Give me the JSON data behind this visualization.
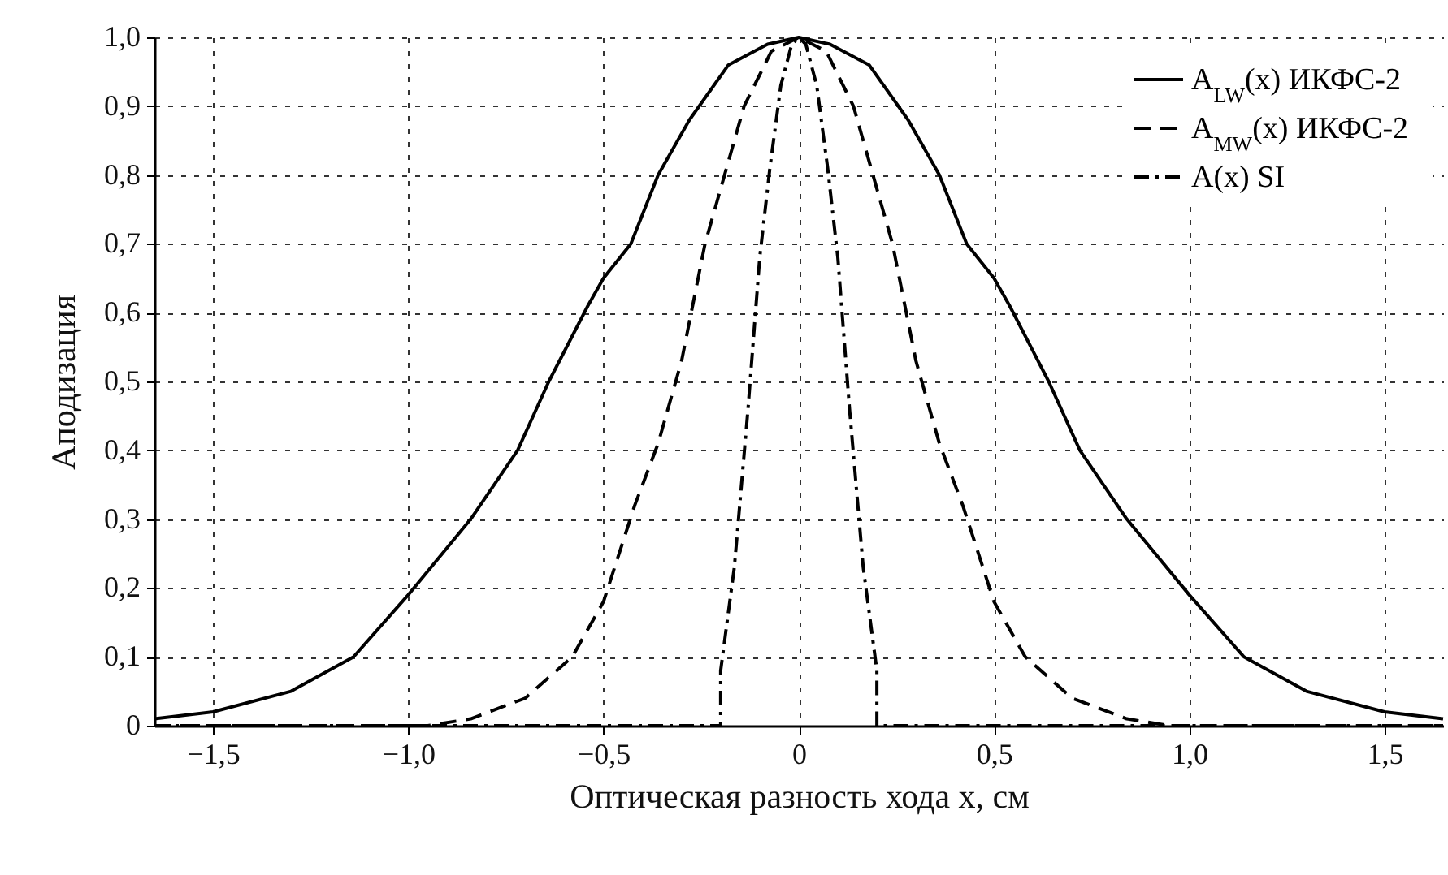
{
  "chart_data": {
    "type": "line",
    "xlabel": "Оптическая разность хода x, см",
    "ylabel": "Аподизация",
    "xlim": [
      -1.65,
      1.65
    ],
    "ylim": [
      0,
      1.0
    ],
    "xticks": [
      {
        "value": -1.5,
        "label": "−1,5"
      },
      {
        "value": -1.0,
        "label": "−1,0"
      },
      {
        "value": -0.5,
        "label": "−0,5"
      },
      0,
      {
        "value": 0.5,
        "label": "0,5"
      },
      {
        "value": 1.0,
        "label": "1,0"
      },
      {
        "value": 1.5,
        "label": "1,5"
      }
    ],
    "yticks": [
      0,
      {
        "value": 0.1,
        "label": "0,1"
      },
      {
        "value": 0.2,
        "label": "0,2"
      },
      {
        "value": 0.3,
        "label": "0,3"
      },
      {
        "value": 0.4,
        "label": "0,4"
      },
      {
        "value": 0.5,
        "label": "0,5"
      },
      {
        "value": 0.6,
        "label": "0,6"
      },
      {
        "value": 0.7,
        "label": "0,7"
      },
      {
        "value": 0.8,
        "label": "0,8"
      },
      {
        "value": 0.9,
        "label": "0,9"
      },
      {
        "value": 1.0,
        "label": "1,0"
      }
    ],
    "grid": true,
    "legend": "top right",
    "marker": "none",
    "series": [
      {
        "name": "A$_{LW}$(x) ИКФС-2",
        "color": "#000000",
        "line_style": "solid",
        "x": [
          -1.65,
          -1.5,
          -1.3,
          -1.14,
          -1.0,
          -0.84,
          -0.72,
          -0.64,
          -0.54,
          -0.5,
          -0.43,
          -0.36,
          -0.28,
          -0.18,
          -0.08,
          0,
          0.08,
          0.18,
          0.28,
          0.36,
          0.43,
          0.5,
          0.54,
          0.64,
          0.72,
          0.84,
          1.0,
          1.14,
          1.3,
          1.5,
          1.65
        ],
        "values": [
          0.01,
          0.02,
          0.05,
          0.1,
          0.19,
          0.3,
          0.4,
          0.5,
          0.61,
          0.65,
          0.7,
          0.8,
          0.88,
          0.96,
          0.99,
          1.0,
          0.99,
          0.96,
          0.88,
          0.8,
          0.7,
          0.65,
          0.61,
          0.5,
          0.4,
          0.3,
          0.19,
          0.1,
          0.05,
          0.02,
          0.01
        ]
      },
      {
        "name": "A$_{MW}$(x) ИКФС-2",
        "color": "#000000",
        "line_style": "dashed",
        "x": [
          -1.65,
          -0.95,
          -0.84,
          -0.7,
          -0.58,
          -0.5,
          -0.42,
          -0.36,
          -0.3,
          -0.24,
          -0.19,
          -0.14,
          -0.07,
          0,
          0.07,
          0.14,
          0.19,
          0.24,
          0.3,
          0.36,
          0.42,
          0.5,
          0.58,
          0.7,
          0.84,
          0.95,
          1.65
        ],
        "values": [
          0,
          0,
          0.01,
          0.04,
          0.1,
          0.18,
          0.32,
          0.41,
          0.53,
          0.7,
          0.8,
          0.9,
          0.98,
          1.0,
          0.98,
          0.9,
          0.8,
          0.7,
          0.53,
          0.41,
          0.32,
          0.18,
          0.1,
          0.04,
          0.01,
          0,
          0
        ]
      },
      {
        "name": "A(x) SI",
        "color": "#000000",
        "line_style": "dashdot",
        "x": [
          -1.65,
          -0.2,
          -0.2,
          -0.165,
          -0.13,
          -0.1,
          -0.074,
          -0.046,
          -0.018,
          0,
          0.018,
          0.046,
          0.074,
          0.1,
          0.13,
          0.165,
          0.2,
          0.2,
          1.65
        ],
        "values": [
          0,
          0,
          0.08,
          0.23,
          0.46,
          0.68,
          0.81,
          0.93,
          0.99,
          1.0,
          0.99,
          0.93,
          0.81,
          0.68,
          0.46,
          0.23,
          0.08,
          0,
          0
        ]
      }
    ]
  }
}
